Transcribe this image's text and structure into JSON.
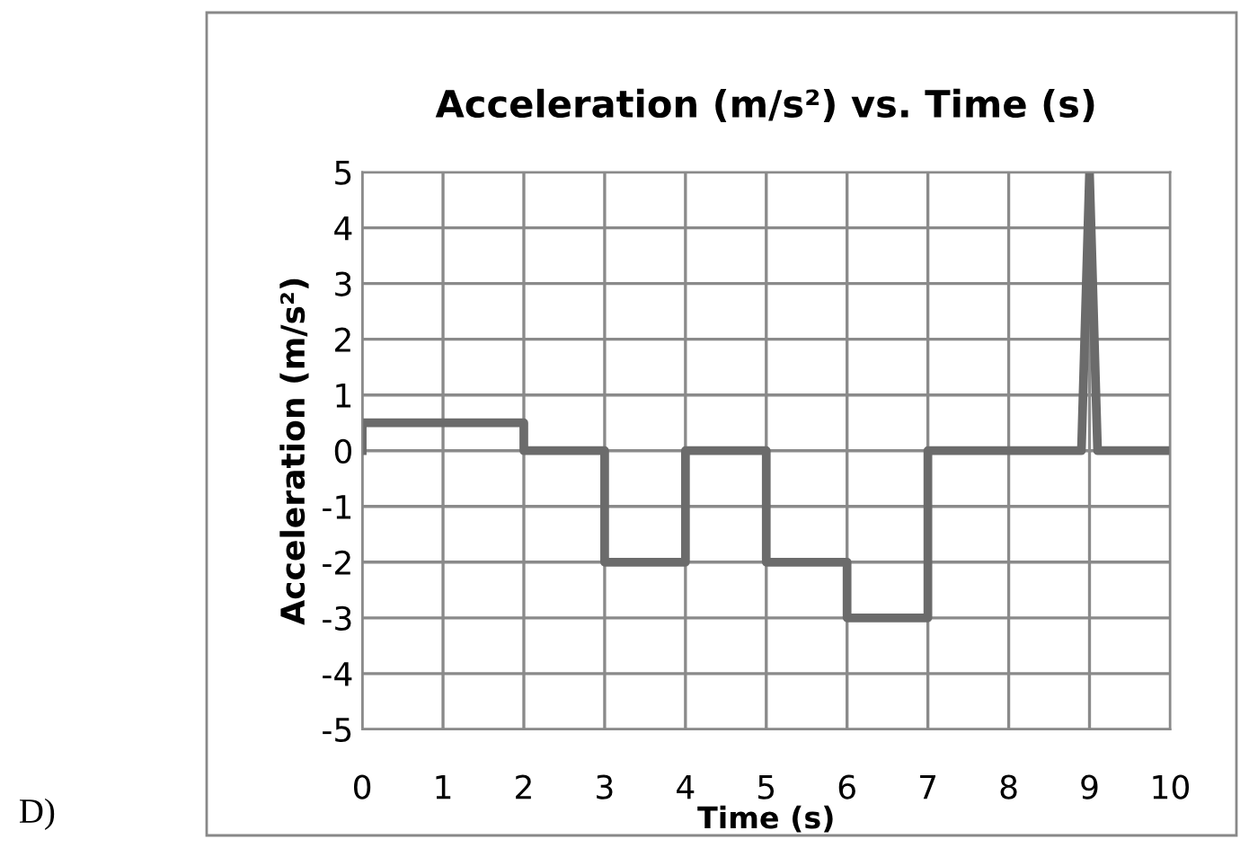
{
  "chart_data": {
    "type": "line",
    "title": "Acceleration (m/s²) vs. Time (s)",
    "xlabel": "Time (s)",
    "ylabel": "Acceleration (m/s²)",
    "annotations": [
      "D)"
    ],
    "series": [
      {
        "color": "#6b6b6b",
        "x": [
          0,
          0,
          2,
          2,
          3,
          3,
          4,
          4,
          5,
          5,
          6,
          6,
          7,
          7,
          8.9,
          9,
          9.1,
          10
        ],
        "values": [
          0,
          0.5,
          0.5,
          0,
          0,
          -2,
          -2,
          0,
          0,
          -2,
          -2,
          -3,
          -3,
          0,
          0,
          5,
          0,
          0
        ]
      }
    ],
    "xlim": [
      0,
      10
    ],
    "ylim": [
      -5,
      5
    ],
    "xticks": [
      0,
      1,
      2,
      3,
      4,
      5,
      6,
      7,
      8,
      9,
      10
    ],
    "yticks": [
      {
        "value": -5,
        "label": "-5"
      },
      {
        "value": -4,
        "label": "-4"
      },
      {
        "value": -3,
        "label": "-3"
      },
      {
        "value": -2,
        "label": "-2"
      },
      {
        "value": -1,
        "label": "-1"
      },
      0,
      1,
      2,
      3,
      4,
      5
    ],
    "grid": true,
    "legend": false,
    "marker": "none",
    "line_style": "solid"
  }
}
